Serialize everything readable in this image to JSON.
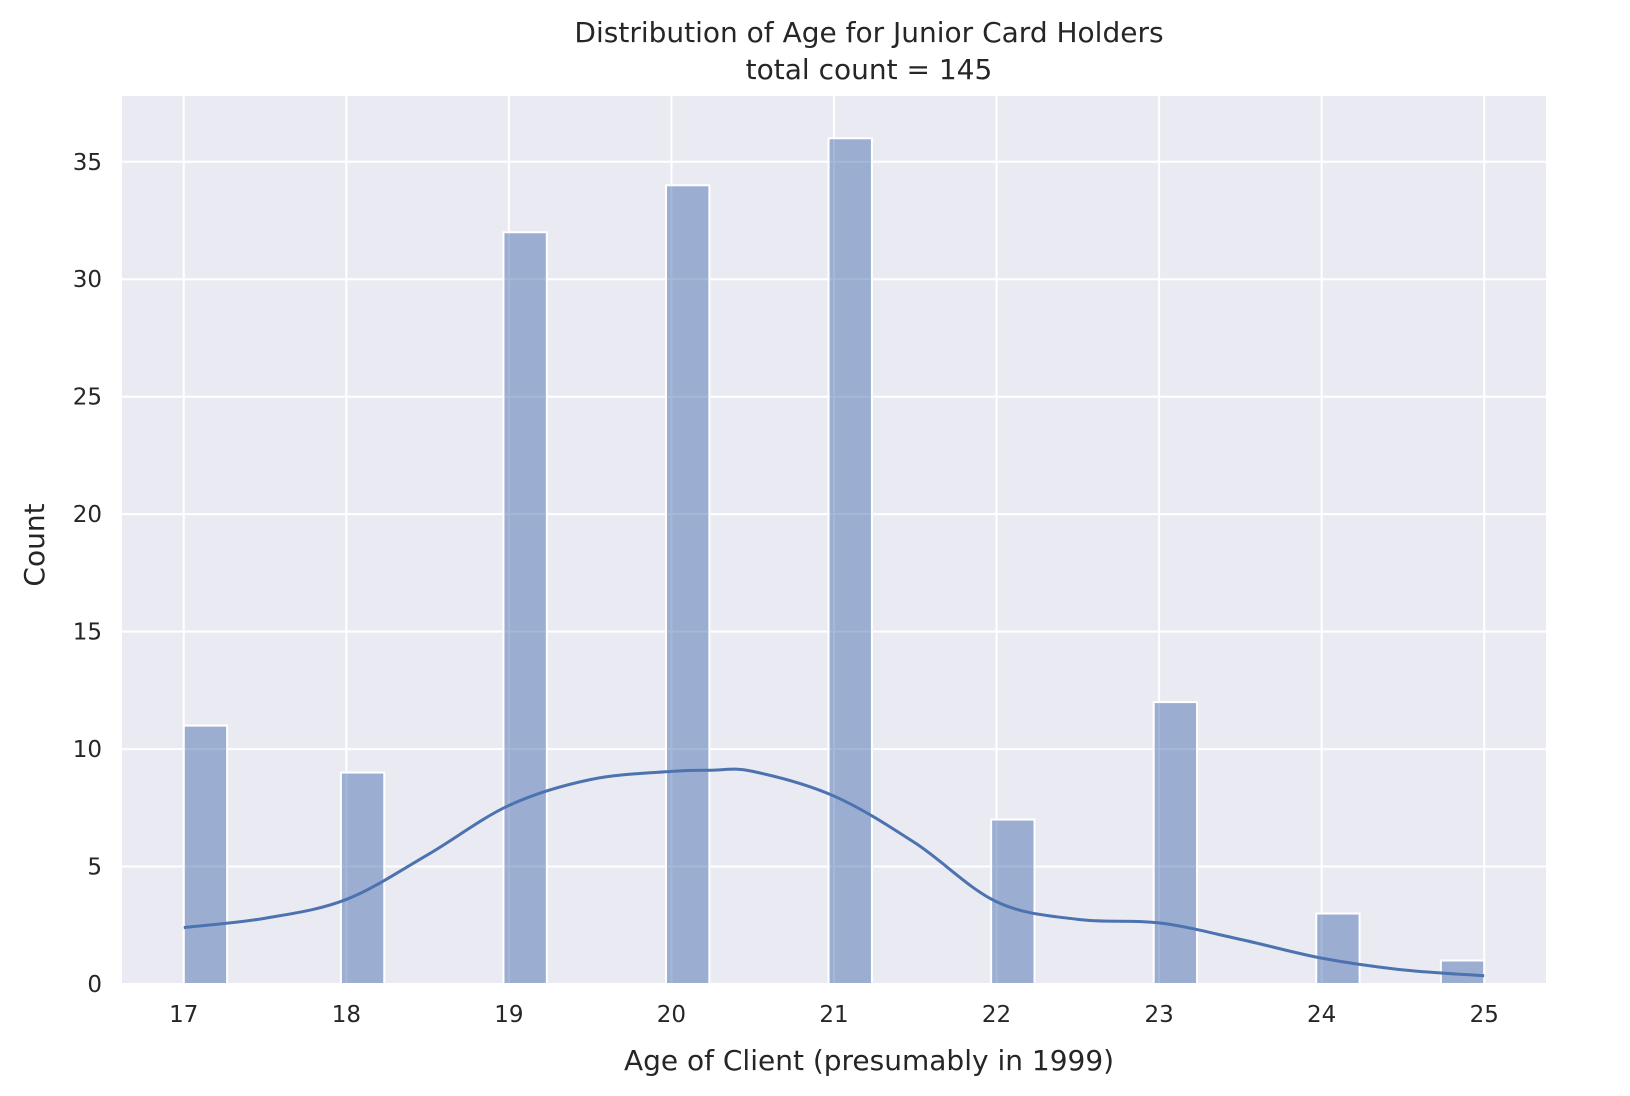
{
  "chart_data": {
    "type": "bar",
    "title": "Distribution of Age for Junior Card Holders",
    "subtitle": "total count = 145",
    "xlabel": "Age of Client (presumably in 1999)",
    "ylabel": "Count",
    "xlim": [
      16.62,
      25.38
    ],
    "ylim": [
      0,
      37.8
    ],
    "x_ticks": [
      17,
      18,
      19,
      20,
      21,
      22,
      23,
      24,
      25
    ],
    "y_ticks": [
      0,
      5,
      10,
      15,
      20,
      25,
      30,
      35
    ],
    "bin_width": 0.2667,
    "grid": true,
    "background": "#eaeaf2",
    "bar_color": "#4c72b0",
    "bars": [
      {
        "x": 17,
        "count": 11
      },
      {
        "x": 18,
        "count": 9
      },
      {
        "x": 19,
        "count": 32
      },
      {
        "x": 20,
        "count": 34
      },
      {
        "x": 21,
        "count": 36
      },
      {
        "x": 22,
        "count": 7
      },
      {
        "x": 23,
        "count": 12
      },
      {
        "x": 24,
        "count": 3
      },
      {
        "x": 25,
        "count": 1
      }
    ],
    "kde": {
      "x": [
        17,
        17.5,
        18,
        18.5,
        19,
        19.5,
        20,
        20.25,
        20.5,
        21,
        21.5,
        22,
        22.5,
        23,
        23.5,
        24,
        24.5,
        25
      ],
      "y": [
        2.4,
        2.8,
        3.6,
        5.5,
        7.6,
        8.7,
        9.05,
        9.1,
        9.05,
        8.0,
        6.0,
        3.5,
        2.75,
        2.6,
        1.9,
        1.1,
        0.6,
        0.35
      ]
    }
  }
}
